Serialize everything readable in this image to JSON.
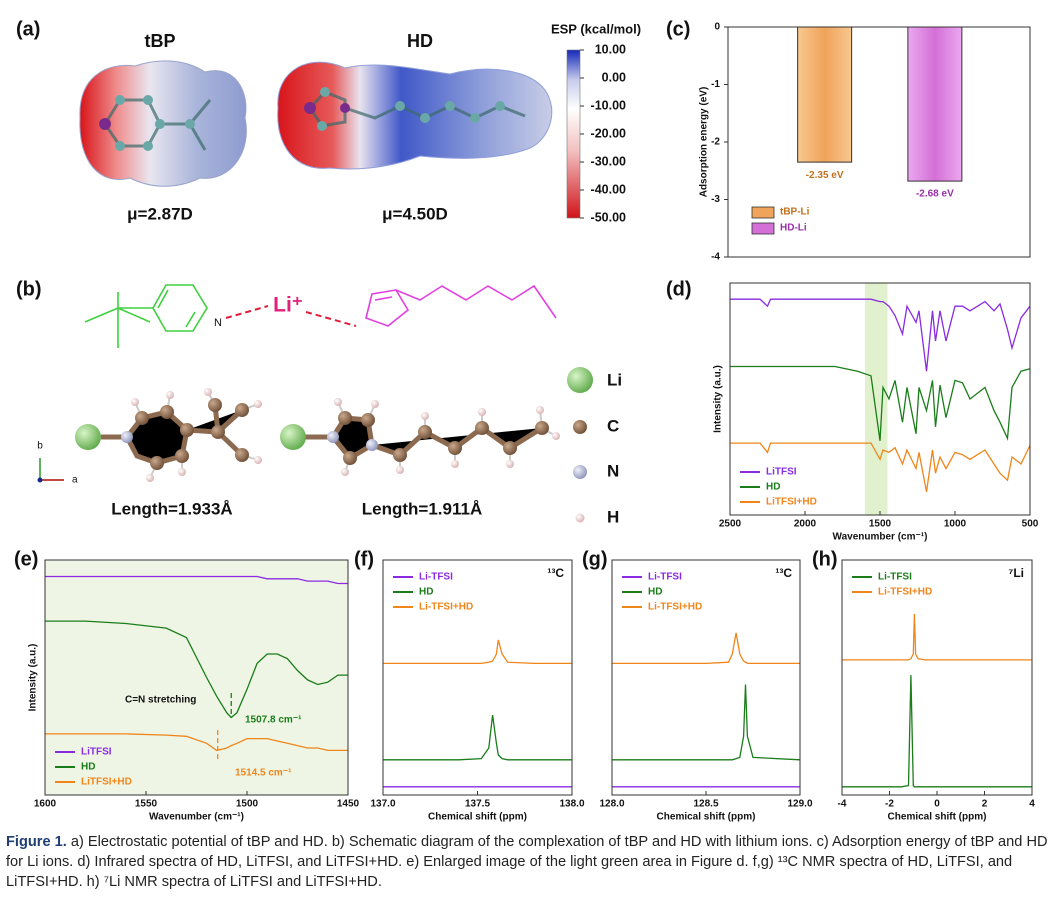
{
  "esp": {
    "panel": "(a)",
    "names": [
      "tBP",
      "HD"
    ],
    "dipoles": [
      "μ=2.87D",
      "μ=4.50D"
    ],
    "colorbar": {
      "title": "ESP (kcal/mol)",
      "lim": [
        -50,
        10
      ],
      "ticks": [
        {
          "value": 10,
          "label": "10.00"
        },
        {
          "value": 0,
          "label": "0.00"
        },
        {
          "value": -10,
          "label": "-10.00"
        },
        {
          "value": -20,
          "label": "-20.00"
        },
        {
          "value": -30,
          "label": "-30.00"
        },
        {
          "value": -40,
          "label": "-40.00"
        },
        {
          "value": -50,
          "label": "-50.00"
        }
      ]
    }
  },
  "structures": {
    "panel": "(b)",
    "ion": "Li⁺",
    "lengths": [
      "Length=1.933Å",
      "Length=1.911Å"
    ],
    "atoms": [
      "Li",
      "C",
      "N",
      "H"
    ],
    "axes": [
      "b",
      "a"
    ]
  },
  "chart_data": [
    {
      "type": "bar",
      "panel": "(c)",
      "ylabel": "Adsorption energy (eV)",
      "categories": [
        "tBP-Li",
        "HD-Li"
      ],
      "values": [
        -2.35,
        -2.68
      ],
      "value_labels": [
        "-2.35 eV",
        "-2.68 eV"
      ],
      "colors": [
        "#f0a35a",
        "#d46fd8"
      ],
      "ylim": [
        -4,
        0
      ],
      "yticks": [
        0,
        -1,
        -2,
        -3,
        -4
      ],
      "legend": "lower left"
    },
    {
      "type": "line",
      "panel": "(d)",
      "xlabel": "Wavenumber (cm⁻¹)",
      "ylabel": "Intensity (a.u.)",
      "x": [
        2500,
        2300,
        2250,
        2230,
        2000,
        1800,
        1650,
        1560,
        1500,
        1480,
        1440,
        1400,
        1350,
        1320,
        1260,
        1240,
        1190,
        1150,
        1130,
        1100,
        1060,
        1000,
        950,
        900,
        800,
        740,
        700,
        650,
        620,
        560,
        500
      ],
      "series": [
        {
          "name": "LiTFSI",
          "color": "#8a2be2",
          "values": [
            0.93,
            0.93,
            0.9,
            0.93,
            0.93,
            0.93,
            0.93,
            0.93,
            0.92,
            0.92,
            0.9,
            0.86,
            0.78,
            0.9,
            0.83,
            0.88,
            0.62,
            0.88,
            0.75,
            0.88,
            0.75,
            0.9,
            0.9,
            0.88,
            0.92,
            0.88,
            0.91,
            0.8,
            0.72,
            0.85,
            0.9
          ]
        },
        {
          "name": "HD",
          "color": "#1a7d1a",
          "values": [
            0.64,
            0.64,
            0.64,
            0.64,
            0.64,
            0.64,
            0.62,
            0.6,
            0.32,
            0.55,
            0.5,
            0.58,
            0.4,
            0.55,
            0.35,
            0.55,
            0.45,
            0.58,
            0.38,
            0.56,
            0.42,
            0.58,
            0.57,
            0.5,
            0.55,
            0.45,
            0.4,
            0.33,
            0.55,
            0.62,
            0.63
          ]
        },
        {
          "name": "LiTFSI+HD",
          "color": "#f0851a",
          "values": [
            0.31,
            0.31,
            0.27,
            0.31,
            0.31,
            0.31,
            0.31,
            0.31,
            0.24,
            0.28,
            0.27,
            0.29,
            0.22,
            0.28,
            0.2,
            0.27,
            0.1,
            0.28,
            0.18,
            0.25,
            0.2,
            0.27,
            0.26,
            0.24,
            0.28,
            0.22,
            0.18,
            0.15,
            0.25,
            0.22,
            0.3
          ]
        }
      ],
      "xlim": [
        2500,
        500
      ],
      "xticks": [
        2500,
        2000,
        1500,
        1000,
        500
      ],
      "ylim": [
        0,
        1
      ],
      "highlight": [
        1600,
        1450
      ],
      "legend": "lower left"
    },
    {
      "type": "line",
      "panel": "(e)",
      "xlabel": "Wavenumber (cm⁻¹)",
      "ylabel": "Intensity (a.u.)",
      "x": [
        1600,
        1580,
        1560,
        1540,
        1530,
        1520,
        1515,
        1510,
        1507.8,
        1505,
        1500,
        1495,
        1490,
        1485,
        1480,
        1475,
        1470,
        1465,
        1460,
        1455,
        1450
      ],
      "series": [
        {
          "name": "LiTFSI",
          "color": "#8a2be2",
          "values": [
            0.93,
            0.93,
            0.93,
            0.93,
            0.93,
            0.93,
            0.93,
            0.93,
            0.93,
            0.93,
            0.93,
            0.93,
            0.92,
            0.92,
            0.92,
            0.92,
            0.91,
            0.91,
            0.91,
            0.9,
            0.9
          ]
        },
        {
          "name": "HD",
          "color": "#1a7d1a",
          "values": [
            0.74,
            0.74,
            0.73,
            0.71,
            0.67,
            0.5,
            0.42,
            0.35,
            0.33,
            0.35,
            0.45,
            0.56,
            0.6,
            0.6,
            0.58,
            0.53,
            0.49,
            0.47,
            0.48,
            0.51,
            0.51
          ]
        },
        {
          "name": "LiTFSI+HD",
          "color": "#f0851a",
          "values": [
            0.26,
            0.26,
            0.26,
            0.255,
            0.25,
            0.22,
            0.19,
            0.2,
            0.21,
            0.22,
            0.24,
            0.24,
            0.24,
            0.23,
            0.22,
            0.21,
            0.2,
            0.2,
            0.19,
            0.19,
            0.19
          ]
        }
      ],
      "xlim": [
        1600,
        1450
      ],
      "xticks": [
        1600,
        1550,
        1500,
        1450
      ],
      "ylim": [
        0,
        1
      ],
      "background": "#eef5e4",
      "markers": [
        {
          "x": 1507.8,
          "color": "#1a7d1a"
        },
        {
          "x": 1514.5,
          "color": "#f0851a"
        }
      ],
      "annotations": [
        {
          "text": "C=N stretching",
          "color": "#111111"
        },
        {
          "text": "1507.8 cm⁻¹",
          "color": "#1a7d1a"
        },
        {
          "text": "1514.5 cm⁻¹",
          "color": "#f0851a"
        }
      ],
      "legend": "lower left"
    },
    {
      "type": "line",
      "panel": "(f)",
      "nucleus": "¹³C",
      "xlabel": "Chemical shift (ppm)",
      "x": [
        137.0,
        137.4,
        137.52,
        137.56,
        137.58,
        137.6,
        137.61,
        137.63,
        137.66,
        137.8,
        138.0
      ],
      "series": [
        {
          "name": "Li-TFSI",
          "color": "#8a2be2",
          "values": [
            0.035,
            0.035,
            0.035,
            0.035,
            0.035,
            0.035,
            0.035,
            0.035,
            0.035,
            0.035,
            0.035
          ]
        },
        {
          "name": "HD",
          "color": "#1a7d1a",
          "values": [
            0.15,
            0.15,
            0.155,
            0.2,
            0.34,
            0.22,
            0.17,
            0.155,
            0.15,
            0.15,
            0.15
          ]
        },
        {
          "name": "Li-TFSI+HD",
          "color": "#f0851a",
          "values": [
            0.56,
            0.56,
            0.56,
            0.565,
            0.57,
            0.6,
            0.66,
            0.6,
            0.565,
            0.56,
            0.56
          ]
        }
      ],
      "xlim": [
        137.0,
        138.0
      ],
      "xticks": [
        {
          "value": 137.0,
          "label": "137.0"
        },
        137.5,
        {
          "value": 138.0,
          "label": "138.0"
        }
      ],
      "ylim": [
        0,
        1
      ],
      "legend": "upper left"
    },
    {
      "type": "line",
      "panel": "(g)",
      "nucleus": "¹³C",
      "xlabel": "Chemical shift (ppm)",
      "x": [
        128.0,
        128.5,
        128.62,
        128.64,
        128.66,
        128.68,
        128.7,
        128.71,
        128.72,
        128.75,
        129.0
      ],
      "series": [
        {
          "name": "Li-TFSI",
          "color": "#8a2be2",
          "values": [
            0.035,
            0.035,
            0.035,
            0.035,
            0.035,
            0.035,
            0.035,
            0.035,
            0.035,
            0.035,
            0.035
          ]
        },
        {
          "name": "HD",
          "color": "#1a7d1a",
          "values": [
            0.15,
            0.15,
            0.15,
            0.15,
            0.155,
            0.16,
            0.25,
            0.47,
            0.25,
            0.16,
            0.15
          ]
        },
        {
          "name": "Li-TFSI+HD",
          "color": "#f0851a",
          "values": [
            0.56,
            0.56,
            0.565,
            0.6,
            0.69,
            0.6,
            0.57,
            0.565,
            0.56,
            0.56,
            0.56
          ]
        }
      ],
      "xlim": [
        128.0,
        129.0
      ],
      "xticks": [
        {
          "value": 128.0,
          "label": "128.0"
        },
        128.5,
        {
          "value": 129.0,
          "label": "129.0"
        }
      ],
      "ylim": [
        0,
        1
      ],
      "legend": "upper left"
    },
    {
      "type": "line",
      "panel": "(h)",
      "nucleus": "⁷Li",
      "xlabel": "Chemical shift (ppm)",
      "x": [
        -4,
        -1.5,
        -1.2,
        -1.1,
        -1.0,
        -0.95,
        -0.9,
        -0.8,
        -0.5,
        4
      ],
      "series": [
        {
          "name": "Li-TFSI",
          "color": "#1a7d1a",
          "values": [
            0.035,
            0.035,
            0.04,
            0.51,
            0.04,
            0.035,
            0.035,
            0.035,
            0.035,
            0.035
          ]
        },
        {
          "name": "Li-TFSI+HD",
          "color": "#f0851a",
          "values": [
            0.575,
            0.575,
            0.575,
            0.58,
            0.6,
            0.77,
            0.6,
            0.58,
            0.575,
            0.575
          ]
        }
      ],
      "xlim": [
        -4,
        4
      ],
      "xticks": [
        -4,
        -2,
        0,
        2,
        4
      ],
      "ylim": [
        0,
        1
      ],
      "legend": "upper left"
    }
  ],
  "caption": {
    "label": "Figure 1.",
    "text": "a) Electrostatic potential of tBP and HD. b) Schematic diagram of the complexation of tBP and HD with lithium ions. c) Adsorption energy of tBP and HD for Li ions. d) Infrared spectra of HD, LiTFSI, and LiTFSI+HD. e) Enlarged image of the light green area in Figure d. f,g) ¹³C NMR spectra of HD, LiTFSI, and LiTFSI+HD. h) ⁷Li NMR spectra of LiTFSI and LiTFSI+HD."
  }
}
